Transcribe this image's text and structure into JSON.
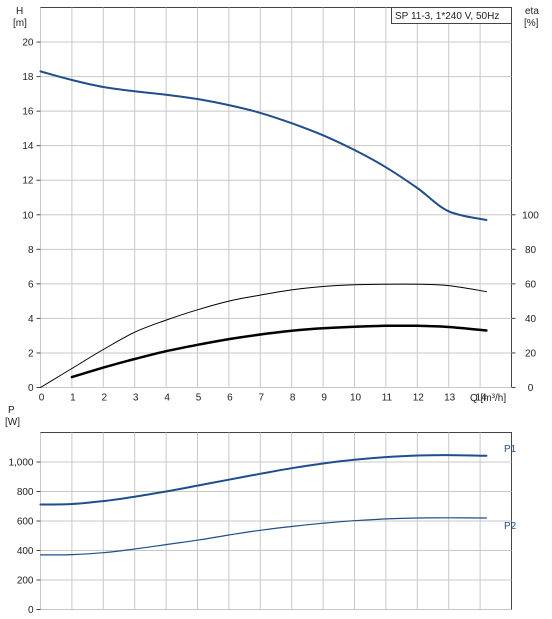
{
  "chart_data": [
    {
      "type": "line",
      "title": "SP 11-3, 1*240 V, 50Hz",
      "xlabel": "Q [m³/h]",
      "ylabel": "H [m]",
      "ylabel_name": "H",
      "ylabel_unit": "[m]",
      "y2label_name": "eta",
      "y2label_unit": "[%]",
      "xlim": [
        0,
        15
      ],
      "ylim": [
        0,
        22
      ],
      "y2lim": [
        0,
        100
      ],
      "grid": true,
      "x_ticks": [
        "0",
        "1",
        "2",
        "3",
        "4",
        "5",
        "6",
        "7",
        "8",
        "9",
        "10",
        "11",
        "12",
        "13",
        "14"
      ],
      "y_ticks": [
        "0",
        "2",
        "4",
        "6",
        "8",
        "10",
        "12",
        "14",
        "16",
        "18",
        "20"
      ],
      "y2_ticks": [
        "0",
        "20",
        "40",
        "60",
        "80",
        "100"
      ],
      "series": [
        {
          "name": "",
          "axis": "H",
          "color": "#1f4e8c",
          "x": [
            0,
            1,
            2,
            3,
            4,
            5,
            6,
            7,
            8,
            9,
            10,
            11,
            12,
            13,
            14.2
          ],
          "y": [
            18.3,
            17.8,
            17.4,
            17.15,
            16.95,
            16.7,
            16.35,
            15.9,
            15.3,
            14.6,
            13.75,
            12.75,
            11.55,
            10.2,
            9.7
          ]
        },
        {
          "name": "",
          "axis": "eta",
          "color": "#000000",
          "x": [
            0,
            1,
            2,
            3,
            4,
            5,
            6,
            7,
            8,
            9,
            10,
            11,
            12,
            13,
            14.2
          ],
          "y": [
            0,
            11,
            22,
            32,
            39,
            45,
            50,
            53.5,
            56.5,
            58.5,
            59.5,
            59.8,
            59.8,
            59,
            55.5
          ]
        },
        {
          "name": "",
          "axis": "eta",
          "color": "#000000",
          "x": [
            1,
            2,
            3,
            4,
            5,
            6,
            7,
            8,
            9,
            10,
            11,
            12,
            13,
            14.2
          ],
          "y": [
            6,
            11.5,
            16.5,
            21,
            24.7,
            28,
            30.7,
            32.8,
            34.3,
            35.2,
            35.7,
            35.7,
            35,
            33
          ]
        }
      ]
    },
    {
      "type": "line",
      "title": "",
      "xlabel": "",
      "ylabel": "P [W]",
      "ylabel_name": "P",
      "ylabel_unit": "[W]",
      "xlim": [
        0,
        15
      ],
      "ylim": [
        0,
        1200
      ],
      "grid": true,
      "y_ticks": [
        "0",
        "200",
        "400",
        "600",
        "800",
        "1,000"
      ],
      "series": [
        {
          "name": "P1",
          "color": "#1f4e8c",
          "x": [
            0,
            1,
            2,
            3,
            4,
            5,
            6,
            7,
            8,
            9,
            10,
            11,
            12,
            13,
            14.2
          ],
          "y": [
            712,
            715,
            735,
            765,
            800,
            840,
            880,
            920,
            958,
            990,
            1015,
            1033,
            1044,
            1047,
            1042
          ]
        },
        {
          "name": "P2",
          "color": "#1f4e8c",
          "x": [
            0,
            1,
            2,
            3,
            4,
            5,
            6,
            7,
            8,
            9,
            10,
            11,
            12,
            13,
            14.2
          ],
          "y": [
            370,
            372,
            385,
            410,
            440,
            470,
            505,
            537,
            563,
            585,
            602,
            614,
            620,
            622,
            620
          ]
        }
      ]
    }
  ]
}
